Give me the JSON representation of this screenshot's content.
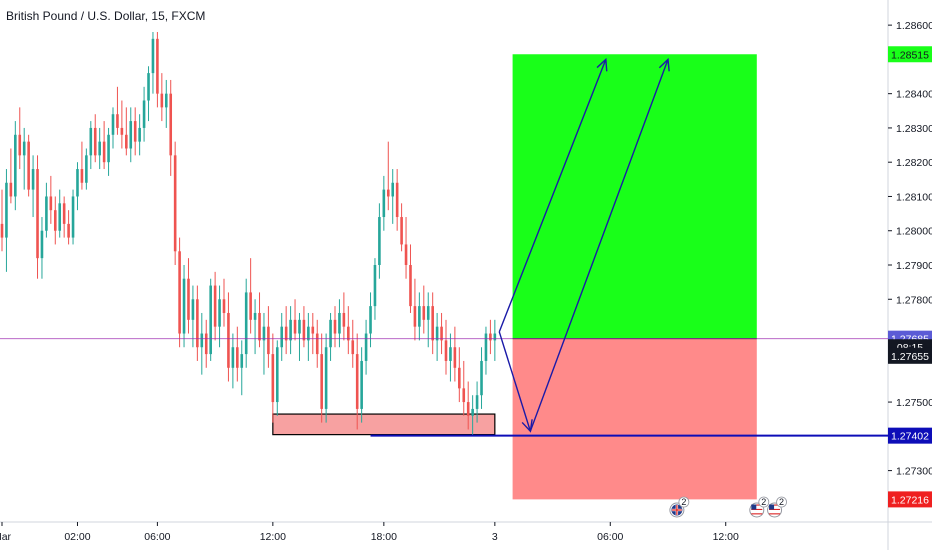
{
  "title": "British Pound / U.S. Dollar, 15, FXCM",
  "colors": {
    "up": "#26a69a",
    "down": "#ef5350",
    "profit_zone": "#19ff19",
    "loss_zone": "#ff8a8a",
    "arrow": "#1a1aa8",
    "level_line": "#0d0db8",
    "price_line": "#9c27b0",
    "zone_box": "#f7a1a1"
  },
  "chart_data": {
    "type": "candlestick",
    "ylim": [
      1.2715,
      1.2865
    ],
    "yticks": [
      1.273,
      1.274,
      1.275,
      1.276,
      1.277,
      1.278,
      1.279,
      1.28,
      1.281,
      1.282,
      1.283,
      1.284,
      1.285,
      1.286
    ],
    "ytick_labels": [
      "1.27300",
      "",
      "1.27500",
      "",
      "",
      "1.27800",
      "1.27900",
      "1.28000",
      "1.28100",
      "1.28200",
      "1.28300",
      "1.28400",
      "",
      "1.28600"
    ],
    "xticks": [
      {
        "label": "Mar",
        "bar": 0
      },
      {
        "label": "02:00",
        "bar": 17
      },
      {
        "label": "06:00",
        "bar": 35
      },
      {
        "label": "12:00",
        "bar": 61
      },
      {
        "label": "18:00",
        "bar": 86
      },
      {
        "label": "3",
        "bar": 111
      },
      {
        "label": "06:00",
        "bar": 137
      },
      {
        "label": "12:00",
        "bar": 163
      }
    ],
    "price_tags": [
      {
        "label": "1.28515",
        "value": 1.28515,
        "bg": "#19ff19",
        "fg": "#131722"
      },
      {
        "label": "1.27685",
        "value": 1.27685,
        "bg": "#5b5bd6",
        "fg": "#ffffff"
      },
      {
        "label": "08:15",
        "value": 1.2766,
        "bg": "#131722",
        "fg": "#ffffff"
      },
      {
        "label": "1.27655",
        "value": 1.27635,
        "bg": "#131722",
        "fg": "#ffffff"
      },
      {
        "label": "1.27402",
        "value": 1.27402,
        "bg": "#0d0db8",
        "fg": "#ffffff"
      },
      {
        "label": "1.27216",
        "value": 1.27216,
        "bg": "#ef2020",
        "fg": "#ffffff"
      }
    ],
    "levels": {
      "current_price": 1.27685,
      "support_line": 1.27402,
      "target": 1.28515,
      "stop": 1.27216,
      "entry": 1.27685
    },
    "zone_box": {
      "bar_start": 61,
      "bar_end": 111,
      "top": 1.27465,
      "bottom": 1.27405
    },
    "position": {
      "bar_start": 115,
      "bar_end": 170
    },
    "arrows": [
      {
        "from": [
          112,
          1.27705
        ],
        "to": [
          119,
          1.27415
        ]
      },
      {
        "from": [
          112,
          1.27705
        ],
        "to": [
          136,
          1.285
        ]
      },
      {
        "from": [
          119,
          1.27415
        ],
        "to": [
          150,
          1.285
        ]
      }
    ],
    "event_badges": [
      {
        "label": "2",
        "bar": 152,
        "flag": "uk"
      },
      {
        "label": "2",
        "bar": 170,
        "flag": "us"
      },
      {
        "label": "2",
        "bar": 174,
        "flag": "us"
      }
    ],
    "candles": [
      [
        1.2802,
        1.2812,
        1.2794,
        1.2798
      ],
      [
        1.2798,
        1.2818,
        1.2788,
        1.2814
      ],
      [
        1.2814,
        1.2824,
        1.2808,
        1.281
      ],
      [
        1.281,
        1.2832,
        1.2806,
        1.2828
      ],
      [
        1.2828,
        1.2836,
        1.2818,
        1.2822
      ],
      [
        1.2822,
        1.283,
        1.2812,
        1.2826
      ],
      [
        1.2826,
        1.2828,
        1.281,
        1.2812
      ],
      [
        1.2812,
        1.2822,
        1.2804,
        1.2818
      ],
      [
        1.2818,
        1.2822,
        1.2786,
        1.2792
      ],
      [
        1.2792,
        1.2804,
        1.2786,
        1.28
      ],
      [
        1.28,
        1.2814,
        1.2798,
        1.281
      ],
      [
        1.281,
        1.2816,
        1.2802,
        1.2806
      ],
      [
        1.2806,
        1.281,
        1.2796,
        1.28
      ],
      [
        1.28,
        1.2812,
        1.2798,
        1.2808
      ],
      [
        1.2808,
        1.281,
        1.2798,
        1.2802
      ],
      [
        1.2802,
        1.2806,
        1.2796,
        1.2798
      ],
      [
        1.2798,
        1.2812,
        1.2796,
        1.281
      ],
      [
        1.281,
        1.282,
        1.2806,
        1.2818
      ],
      [
        1.2818,
        1.2826,
        1.2812,
        1.2814
      ],
      [
        1.2814,
        1.2824,
        1.2812,
        1.2822
      ],
      [
        1.2822,
        1.2832,
        1.2818,
        1.283
      ],
      [
        1.283,
        1.2834,
        1.282,
        1.2822
      ],
      [
        1.2822,
        1.283,
        1.2818,
        1.2826
      ],
      [
        1.2826,
        1.2832,
        1.2818,
        1.282
      ],
      [
        1.282,
        1.283,
        1.2816,
        1.2828
      ],
      [
        1.2828,
        1.2836,
        1.2824,
        1.2834
      ],
      [
        1.2834,
        1.2842,
        1.2828,
        1.283
      ],
      [
        1.283,
        1.2838,
        1.2824,
        1.2828
      ],
      [
        1.2828,
        1.2836,
        1.2822,
        1.2824
      ],
      [
        1.2824,
        1.2836,
        1.282,
        1.2832
      ],
      [
        1.2832,
        1.2836,
        1.2822,
        1.2826
      ],
      [
        1.2826,
        1.2834,
        1.2822,
        1.283
      ],
      [
        1.283,
        1.2842,
        1.2826,
        1.2838
      ],
      [
        1.2838,
        1.2848,
        1.2832,
        1.2846
      ],
      [
        1.2846,
        1.2858,
        1.284,
        1.2856
      ],
      [
        1.2856,
        1.2858,
        1.2836,
        1.284
      ],
      [
        1.284,
        1.2846,
        1.2832,
        1.2836
      ],
      [
        1.2836,
        1.2844,
        1.283,
        1.284
      ],
      [
        1.284,
        1.2844,
        1.2816,
        1.2822
      ],
      [
        1.2822,
        1.2826,
        1.279,
        1.2794
      ],
      [
        1.2794,
        1.2798,
        1.2766,
        1.277
      ],
      [
        1.277,
        1.279,
        1.2766,
        1.2786
      ],
      [
        1.2786,
        1.2792,
        1.277,
        1.2774
      ],
      [
        1.2774,
        1.2784,
        1.2766,
        1.278
      ],
      [
        1.278,
        1.2784,
        1.2762,
        1.2766
      ],
      [
        1.2766,
        1.2776,
        1.2758,
        1.277
      ],
      [
        1.277,
        1.2774,
        1.276,
        1.2764
      ],
      [
        1.2764,
        1.2786,
        1.2762,
        1.2784
      ],
      [
        1.2784,
        1.2788,
        1.2768,
        1.2772
      ],
      [
        1.2772,
        1.2784,
        1.2766,
        1.278
      ],
      [
        1.278,
        1.2786,
        1.2772,
        1.2776
      ],
      [
        1.2776,
        1.2782,
        1.2756,
        1.276
      ],
      [
        1.276,
        1.277,
        1.2754,
        1.2766
      ],
      [
        1.2766,
        1.2772,
        1.2756,
        1.276
      ],
      [
        1.276,
        1.2768,
        1.2752,
        1.2764
      ],
      [
        1.2764,
        1.2786,
        1.276,
        1.2782
      ],
      [
        1.2782,
        1.2792,
        1.277,
        1.2774
      ],
      [
        1.2774,
        1.278,
        1.2764,
        1.2776
      ],
      [
        1.2776,
        1.2782,
        1.2766,
        1.2768
      ],
      [
        1.2768,
        1.2776,
        1.2758,
        1.2772
      ],
      [
        1.2772,
        1.2778,
        1.276,
        1.2764
      ],
      [
        1.2764,
        1.277,
        1.2744,
        1.275
      ],
      [
        1.275,
        1.2768,
        1.2746,
        1.2766
      ],
      [
        1.2766,
        1.2776,
        1.2762,
        1.2772
      ],
      [
        1.2772,
        1.2778,
        1.2764,
        1.2768
      ],
      [
        1.2768,
        1.2778,
        1.2764,
        1.2774
      ],
      [
        1.2774,
        1.278,
        1.2768,
        1.277
      ],
      [
        1.277,
        1.2776,
        1.2762,
        1.2774
      ],
      [
        1.2774,
        1.2778,
        1.2766,
        1.2768
      ],
      [
        1.2768,
        1.2776,
        1.2762,
        1.2772
      ],
      [
        1.2772,
        1.2776,
        1.2764,
        1.277
      ],
      [
        1.277,
        1.2774,
        1.276,
        1.2764
      ],
      [
        1.2764,
        1.277,
        1.2744,
        1.2748
      ],
      [
        1.2748,
        1.277,
        1.2744,
        1.2766
      ],
      [
        1.2766,
        1.2776,
        1.2762,
        1.2774
      ],
      [
        1.2774,
        1.2778,
        1.2766,
        1.277
      ],
      [
        1.277,
        1.278,
        1.2766,
        1.2776
      ],
      [
        1.2776,
        1.2782,
        1.2768,
        1.2772
      ],
      [
        1.2772,
        1.2778,
        1.2764,
        1.2768
      ],
      [
        1.2768,
        1.2774,
        1.276,
        1.2764
      ],
      [
        1.2764,
        1.277,
        1.2742,
        1.2748
      ],
      [
        1.2748,
        1.2766,
        1.2744,
        1.2762
      ],
      [
        1.2762,
        1.2774,
        1.2758,
        1.277
      ],
      [
        1.277,
        1.2782,
        1.2766,
        1.2778
      ],
      [
        1.2778,
        1.2792,
        1.2774,
        1.279
      ],
      [
        1.279,
        1.2808,
        1.2786,
        1.2804
      ],
      [
        1.2804,
        1.2816,
        1.28,
        1.2812
      ],
      [
        1.2812,
        1.2826,
        1.2806,
        1.281
      ],
      [
        1.281,
        1.2818,
        1.2802,
        1.2814
      ],
      [
        1.2814,
        1.2818,
        1.28,
        1.2804
      ],
      [
        1.2804,
        1.2808,
        1.2794,
        1.2796
      ],
      [
        1.2796,
        1.2804,
        1.2786,
        1.279
      ],
      [
        1.279,
        1.2796,
        1.2776,
        1.2778
      ],
      [
        1.2778,
        1.2786,
        1.2768,
        1.2772
      ],
      [
        1.2772,
        1.2782,
        1.2768,
        1.2778
      ],
      [
        1.2778,
        1.2784,
        1.277,
        1.2774
      ],
      [
        1.2774,
        1.2782,
        1.2766,
        1.2778
      ],
      [
        1.2778,
        1.2782,
        1.2764,
        1.2768
      ],
      [
        1.2768,
        1.2776,
        1.2762,
        1.2772
      ],
      [
        1.2772,
        1.2776,
        1.2764,
        1.2768
      ],
      [
        1.2768,
        1.2774,
        1.2758,
        1.2762
      ],
      [
        1.2762,
        1.277,
        1.2756,
        1.2766
      ],
      [
        1.2766,
        1.2772,
        1.2756,
        1.276
      ],
      [
        1.276,
        1.2766,
        1.275,
        1.2754
      ],
      [
        1.2754,
        1.2762,
        1.2746,
        1.275
      ],
      [
        1.275,
        1.2756,
        1.2742,
        1.2746
      ],
      [
        1.2746,
        1.2752,
        1.274,
        1.2748
      ],
      [
        1.2748,
        1.2756,
        1.2744,
        1.2752
      ],
      [
        1.2752,
        1.2766,
        1.2748,
        1.2762
      ],
      [
        1.2762,
        1.2772,
        1.2758,
        1.277
      ],
      [
        1.277,
        1.2774,
        1.2764,
        1.2768
      ],
      [
        1.2768,
        1.2774,
        1.2762,
        1.277
      ]
    ]
  }
}
